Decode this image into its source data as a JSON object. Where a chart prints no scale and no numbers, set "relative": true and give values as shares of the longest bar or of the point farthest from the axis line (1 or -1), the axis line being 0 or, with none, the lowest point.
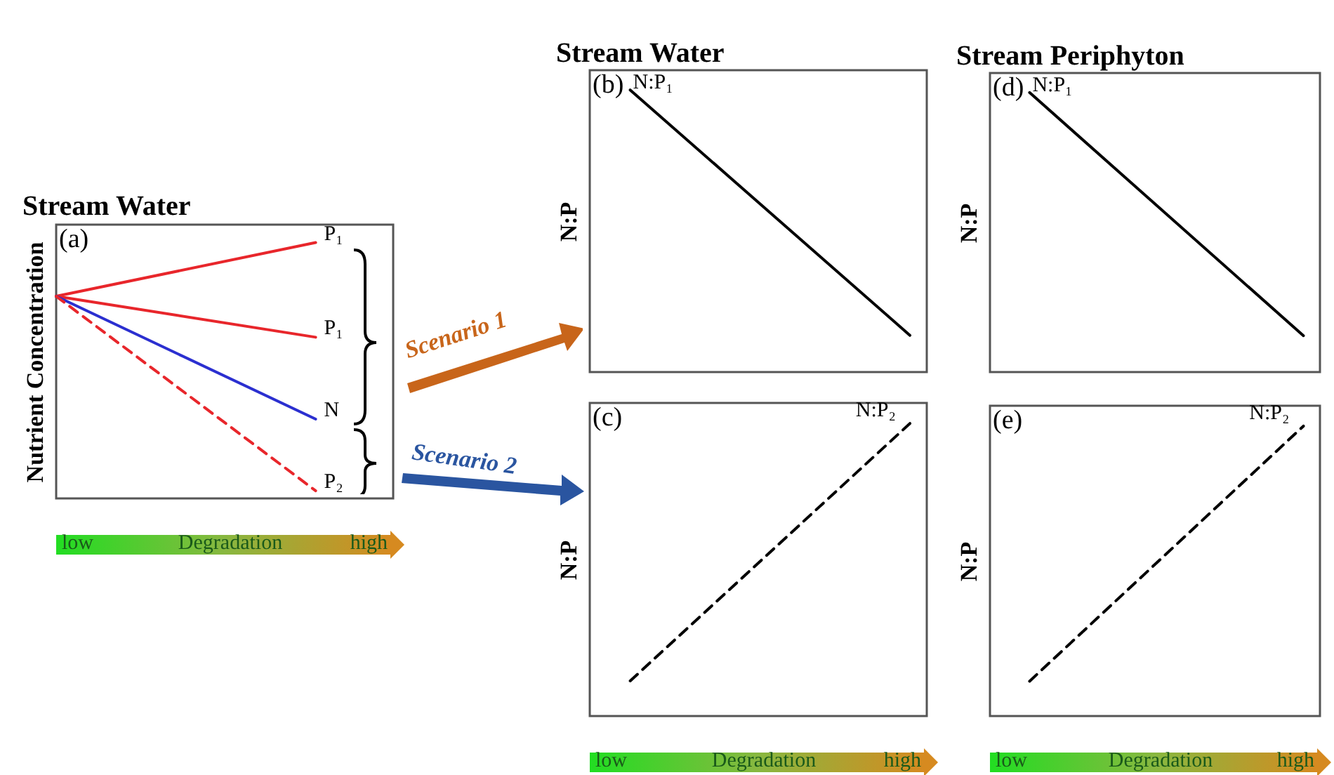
{
  "chart_data": [
    {
      "type": "line",
      "title": "Stream Water",
      "ylabel": "Nutrient Concentration",
      "xlabel": "Degradation",
      "relative": true,
      "categories": [
        null,
        null
      ],
      "annotations": [
        "(a)",
        "low",
        "high",
        "Scenario 1",
        "Scenario 2"
      ],
      "series": [
        {
          "name": "P₁",
          "color": "#e8262b",
          "values": [
            0.79,
            1
          ]
        },
        {
          "name": "P₁",
          "color": "#e8262b",
          "values": [
            0.79,
            0.63
          ]
        },
        {
          "name": "N",
          "color": "#2b2fd0",
          "values": [
            0.79,
            0.31
          ]
        },
        {
          "name": "P₂",
          "color": "#e8262b",
          "values": [
            0.79,
            0.03
          ],
          "line_style": "dashed"
        }
      ]
    },
    {
      "type": "line",
      "title": "Stream Water",
      "ylabel": "N:P",
      "relative": true,
      "categories": [
        null,
        null
      ],
      "annotations": [
        "(b)"
      ],
      "series": [
        {
          "name": "N:P₁",
          "color": "#000000",
          "values": [
            1,
            0.13
          ]
        }
      ]
    },
    {
      "type": "line",
      "ylabel": "N:P",
      "xlabel": "Degradation",
      "relative": true,
      "categories": [
        null,
        null
      ],
      "annotations": [
        "(c)",
        "low",
        "high"
      ],
      "series": [
        {
          "name": "N:P₂",
          "color": "#000000",
          "values": [
            0.12,
            1
          ],
          "line_style": "dashed"
        }
      ]
    },
    {
      "type": "line",
      "title": "Stream Periphyton",
      "ylabel": "N:P",
      "relative": true,
      "categories": [
        null,
        null
      ],
      "annotations": [
        "(d)"
      ],
      "series": [
        {
          "name": "N:P₁",
          "color": "#000000",
          "values": [
            1,
            0.13
          ]
        }
      ]
    },
    {
      "type": "line",
      "ylabel": "N:P",
      "xlabel": "Degradation",
      "relative": true,
      "categories": [
        null,
        null
      ],
      "annotations": [
        "(e)",
        "low",
        "high"
      ],
      "series": [
        {
          "name": "N:P₂",
          "color": "#000000",
          "values": [
            0.12,
            1
          ],
          "line_style": "dashed"
        }
      ]
    }
  ]
}
